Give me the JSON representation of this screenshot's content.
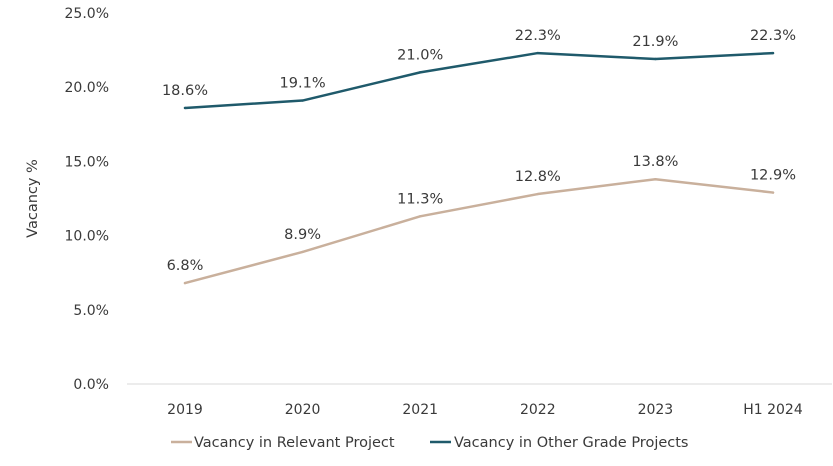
{
  "chart_data": {
    "type": "line",
    "categories": [
      "2019",
      "2020",
      "2021",
      "2022",
      "2023",
      "H1 2024"
    ],
    "series": [
      {
        "name": "Vacancy in Relevant Project",
        "values": [
          6.8,
          8.9,
          11.3,
          12.8,
          13.8,
          12.9
        ],
        "labels": [
          "6.8%",
          "8.9%",
          "11.3%",
          "12.8%",
          "13.8%",
          "12.9%"
        ],
        "color": "#c9b09c"
      },
      {
        "name": "Vacancy in Other Grade Projects",
        "values": [
          18.6,
          19.1,
          21.0,
          22.3,
          21.9,
          22.3
        ],
        "labels": [
          "18.6%",
          "19.1%",
          "21.0%",
          "22.3%",
          "21.9%",
          "22.3%"
        ],
        "color": "#1f5a6b"
      }
    ],
    "ylabel": "Vacancy %",
    "ylim": [
      0,
      25
    ],
    "yticks": [
      {
        "value": 0,
        "label": "0.0%"
      },
      {
        "value": 5,
        "label": "5.0%"
      },
      {
        "value": 10,
        "label": "10.0%"
      },
      {
        "value": 15,
        "label": "15.0%"
      },
      {
        "value": 20,
        "label": "20.0%"
      },
      {
        "value": 25,
        "label": "25.0%"
      }
    ],
    "grid": false,
    "legend": "bottom",
    "axis_color": "#d9d9d9"
  }
}
